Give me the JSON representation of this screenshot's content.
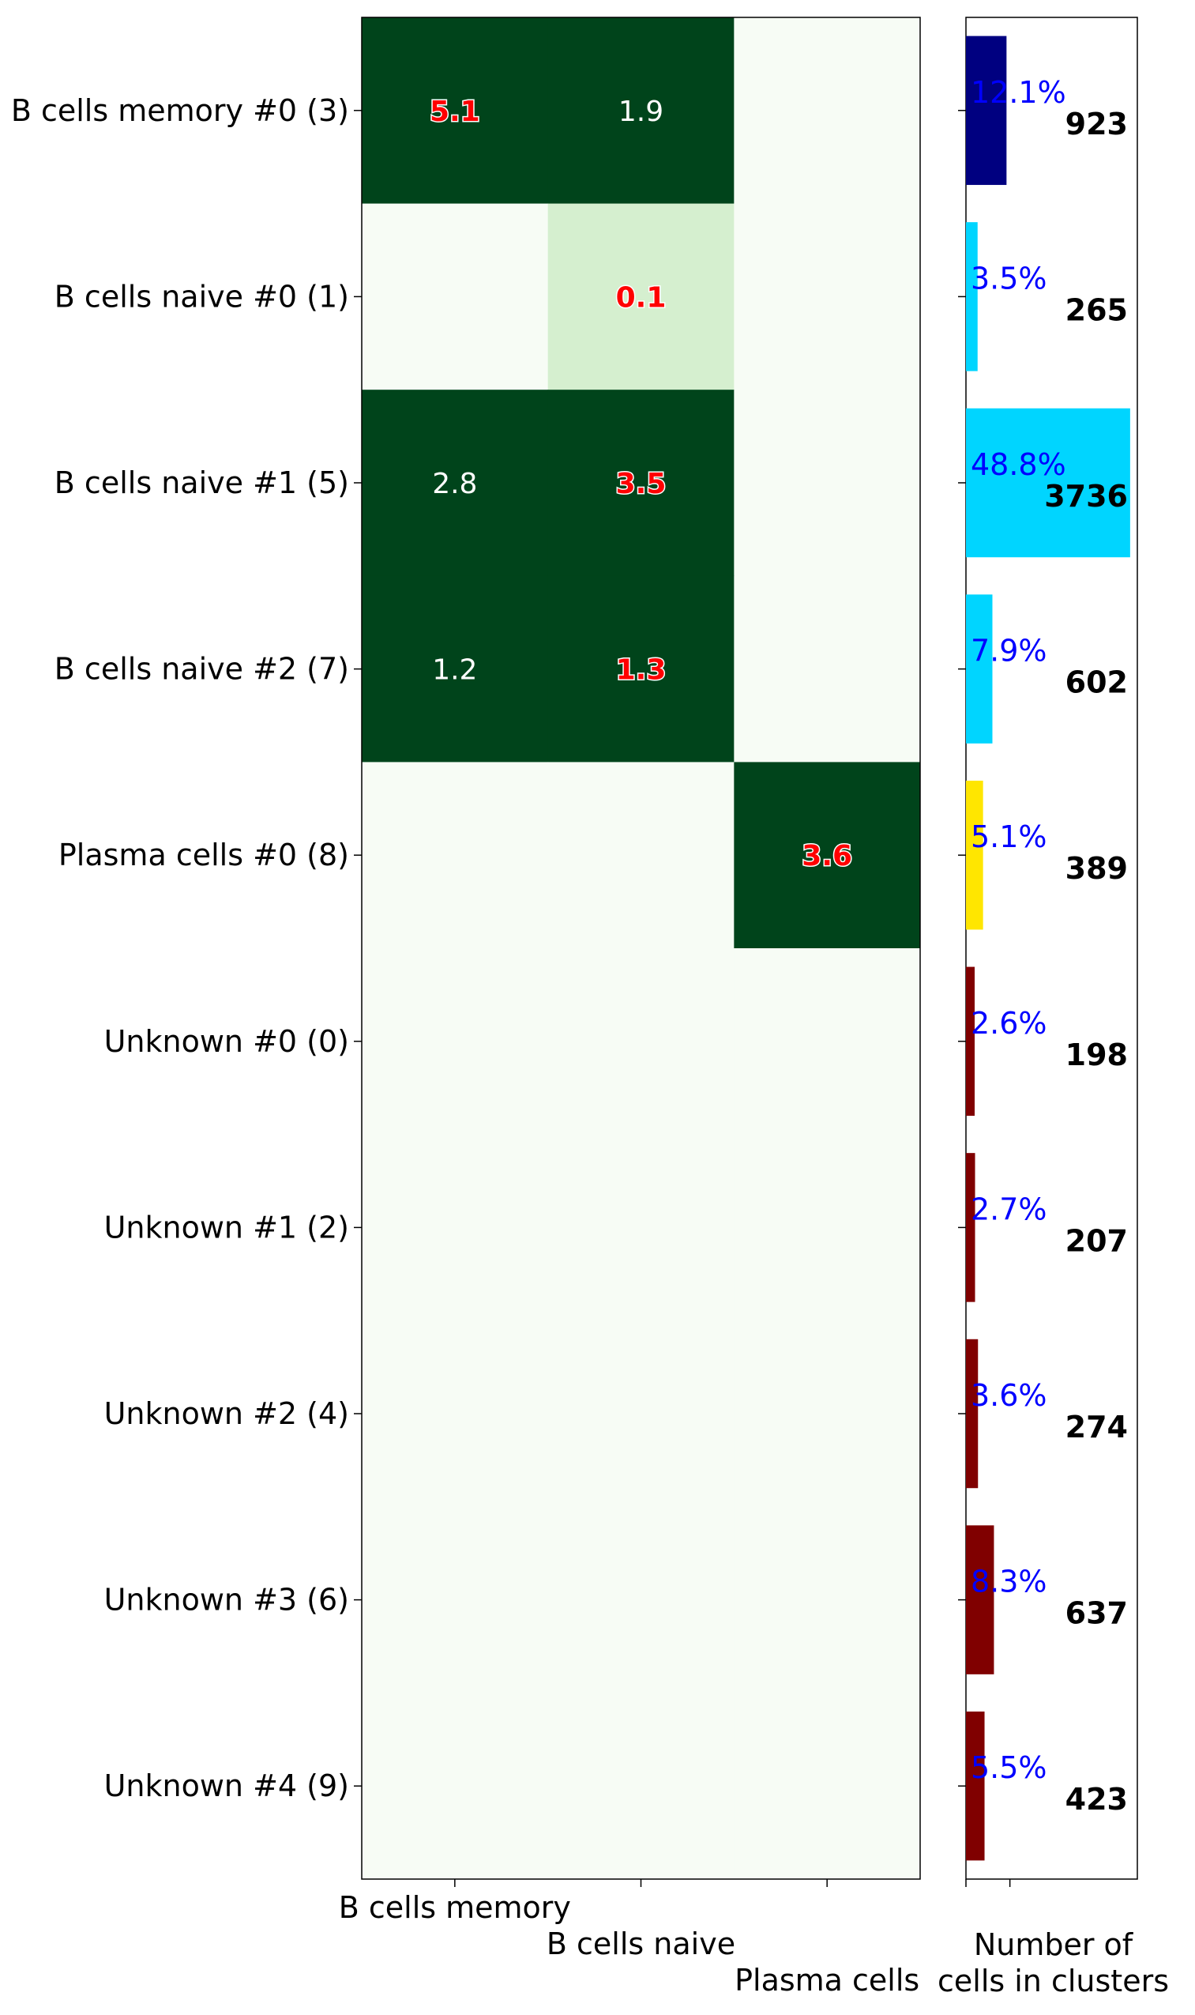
{
  "chart_data": {
    "type": "heatmap",
    "rows": [
      "B cells memory #0 (3)",
      "B cells naive #0 (1)",
      "B cells naive #1 (5)",
      "B cells naive #2 (7)",
      "Plasma cells #0 (8)",
      "Unknown #0 (0)",
      "Unknown #1 (2)",
      "Unknown #2 (4)",
      "Unknown #3 (6)",
      "Unknown #4 (9)"
    ],
    "columns": [
      "B cells memory",
      "B cells naive",
      "Plasma cells"
    ],
    "cells": [
      [
        {
          "value": 5.1,
          "label": "5.1",
          "highlight": true
        },
        {
          "value": 1.9,
          "label": "1.9",
          "highlight": false
        },
        {
          "value": 0,
          "label": "",
          "highlight": false
        }
      ],
      [
        {
          "value": 0,
          "label": "",
          "highlight": false
        },
        {
          "value": 0.1,
          "label": "0.1",
          "highlight": true
        },
        {
          "value": 0,
          "label": "",
          "highlight": false
        }
      ],
      [
        {
          "value": 2.8,
          "label": "2.8",
          "highlight": false
        },
        {
          "value": 3.5,
          "label": "3.5",
          "highlight": true
        },
        {
          "value": 0,
          "label": "",
          "highlight": false
        }
      ],
      [
        {
          "value": 1.2,
          "label": "1.2",
          "highlight": false
        },
        {
          "value": 1.3,
          "label": "1.3",
          "highlight": true
        },
        {
          "value": 0,
          "label": "",
          "highlight": false
        }
      ],
      [
        {
          "value": 0,
          "label": "",
          "highlight": false
        },
        {
          "value": 0,
          "label": "",
          "highlight": false
        },
        {
          "value": 3.6,
          "label": "3.6",
          "highlight": true
        }
      ],
      [
        {
          "value": 0,
          "label": "",
          "highlight": false
        },
        {
          "value": 0,
          "label": "",
          "highlight": false
        },
        {
          "value": 0,
          "label": "",
          "highlight": false
        }
      ],
      [
        {
          "value": 0,
          "label": "",
          "highlight": false
        },
        {
          "value": 0,
          "label": "",
          "highlight": false
        },
        {
          "value": 0,
          "label": "",
          "highlight": false
        }
      ],
      [
        {
          "value": 0,
          "label": "",
          "highlight": false
        },
        {
          "value": 0,
          "label": "",
          "highlight": false
        },
        {
          "value": 0,
          "label": "",
          "highlight": false
        }
      ],
      [
        {
          "value": 0,
          "label": "",
          "highlight": false
        },
        {
          "value": 0,
          "label": "",
          "highlight": false
        },
        {
          "value": 0,
          "label": "",
          "highlight": false
        }
      ],
      [
        {
          "value": 0,
          "label": "",
          "highlight": false
        },
        {
          "value": 0,
          "label": "",
          "highlight": false
        },
        {
          "value": 0,
          "label": "",
          "highlight": false
        }
      ]
    ],
    "colors": {
      "high": "#00441b",
      "low": "#d5efcf",
      "zero": "#f7fcf5",
      "highlight_text": "#ff0000",
      "normal_text": "#ffffff"
    },
    "bar_panel": {
      "type": "bar",
      "orientation": "horizontal",
      "xlabel": "Number of\ncells in clusters",
      "xlim": [
        0,
        3900
      ],
      "counts": [
        923,
        265,
        3736,
        602,
        389,
        198,
        207,
        274,
        637,
        423
      ],
      "count_labels": [
        "923",
        "265",
        "3736",
        "602",
        "389",
        "198",
        "207",
        "274",
        "637",
        "423"
      ],
      "percent_labels": [
        "12.1%",
        "3.5%",
        "48.8%",
        "7.9%",
        "5.1%",
        "2.6%",
        "2.7%",
        "3.6%",
        "8.3%",
        "5.5%"
      ],
      "bar_colors": [
        "#000080",
        "#00d5ff",
        "#00d5ff",
        "#00d5ff",
        "#ffe600",
        "#800000",
        "#800000",
        "#800000",
        "#800000",
        "#800000"
      ],
      "percent_color": "#0000ff"
    }
  }
}
